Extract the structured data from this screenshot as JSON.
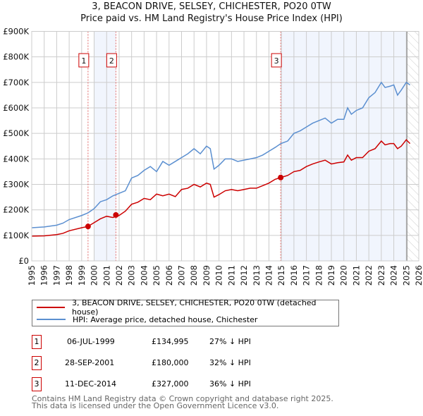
{
  "title": "3, BEACON DRIVE, SELSEY, CHICHESTER, PO20 0TW",
  "subtitle": "Price paid vs. HM Land Registry's House Price Index (HPI)",
  "chart_data": {
    "type": "line",
    "title": "3, BEACON DRIVE, SELSEY, CHICHESTER, PO20 0TW",
    "subtitle": "Price paid vs. HM Land Registry's House Price Index (HPI)",
    "xlim": [
      1995,
      2026
    ],
    "ylim": [
      0,
      900000
    ],
    "x_ticks": [
      "1995",
      "1996",
      "1997",
      "1998",
      "1999",
      "2000",
      "2001",
      "2002",
      "2003",
      "2004",
      "2005",
      "2006",
      "2007",
      "2008",
      "2009",
      "2010",
      "2011",
      "2012",
      "2013",
      "2014",
      "2015",
      "2016",
      "2017",
      "2018",
      "2019",
      "2020",
      "2021",
      "2022",
      "2023",
      "2024",
      "2025",
      "2026"
    ],
    "y_ticks": [
      {
        "v": 0,
        "label": "£0"
      },
      {
        "v": 100000,
        "label": "£100K"
      },
      {
        "v": 200000,
        "label": "£200K"
      },
      {
        "v": 300000,
        "label": "£300K"
      },
      {
        "v": 400000,
        "label": "£400K"
      },
      {
        "v": 500000,
        "label": "£500K"
      },
      {
        "v": 600000,
        "label": "£600K"
      },
      {
        "v": 700000,
        "label": "£700K"
      },
      {
        "v": 800000,
        "label": "£800K"
      },
      {
        "v": 900000,
        "label": "£900K"
      }
    ],
    "grid": true,
    "x": [
      1995,
      1996,
      1997,
      1997.5,
      1998,
      1999,
      1999.5,
      2000,
      2000.5,
      2001,
      2001.5,
      2002,
      2002.5,
      2003,
      2003.5,
      2004,
      2004.5,
      2005,
      2005.5,
      2006,
      2006.5,
      2007,
      2007.5,
      2008,
      2008.5,
      2009,
      2009.3,
      2009.6,
      2010,
      2010.5,
      2011,
      2011.5,
      2012,
      2012.5,
      2013,
      2013.5,
      2014,
      2014.5,
      2014.95,
      2015.5,
      2016,
      2016.5,
      2017,
      2017.5,
      2018,
      2018.5,
      2019,
      2019.5,
      2020,
      2020.3,
      2020.6,
      2021,
      2021.5,
      2022,
      2022.5,
      2023,
      2023.3,
      2023.7,
      2024,
      2024.3,
      2024.6,
      2025,
      2025.3
    ],
    "series": [
      {
        "name": "3, BEACON DRIVE, SELSEY, CHICHESTER, PO20 0TW (detached house)",
        "color": "#cc0000",
        "values": [
          97000,
          98000,
          103000,
          108000,
          118000,
          130000,
          135000,
          150000,
          165000,
          175000,
          170000,
          178000,
          195000,
          222000,
          230000,
          245000,
          240000,
          262000,
          255000,
          262000,
          252000,
          280000,
          285000,
          300000,
          290000,
          305000,
          300000,
          250000,
          260000,
          275000,
          280000,
          275000,
          280000,
          285000,
          285000,
          295000,
          305000,
          320000,
          327000,
          335000,
          350000,
          355000,
          370000,
          380000,
          388000,
          395000,
          380000,
          385000,
          388000,
          415000,
          395000,
          405000,
          405000,
          430000,
          440000,
          470000,
          455000,
          460000,
          460000,
          440000,
          450000,
          475000,
          460000
        ]
      },
      {
        "name": "HPI: Average price, detached house, Chichester",
        "color": "#5b8fd0",
        "values": [
          130000,
          133000,
          140000,
          148000,
          162000,
          178000,
          188000,
          205000,
          232000,
          240000,
          255000,
          265000,
          275000,
          325000,
          335000,
          355000,
          370000,
          350000,
          390000,
          375000,
          390000,
          405000,
          420000,
          440000,
          420000,
          450000,
          440000,
          360000,
          375000,
          400000,
          400000,
          390000,
          395000,
          400000,
          405000,
          415000,
          430000,
          445000,
          460000,
          470000,
          500000,
          510000,
          525000,
          540000,
          550000,
          560000,
          540000,
          555000,
          555000,
          600000,
          575000,
          590000,
          600000,
          640000,
          660000,
          700000,
          680000,
          685000,
          690000,
          650000,
          670000,
          700000,
          690000
        ]
      }
    ],
    "sales": [
      {
        "label": "1",
        "year": 1999.51,
        "price": 134995,
        "date": "06-JUL-1999",
        "price_text": "£134,995",
        "hpi_text": "27% ↓ HPI"
      },
      {
        "label": "2",
        "year": 2001.74,
        "price": 180000,
        "date": "28-SEP-2001",
        "price_text": "£180,000",
        "hpi_text": "32% ↓ HPI"
      },
      {
        "label": "3",
        "year": 2014.94,
        "price": 327000,
        "date": "11-DEC-2014",
        "price_text": "£327,000",
        "hpi_text": "36% ↓ HPI"
      }
    ],
    "shaded_ranges": [
      [
        2000,
        2001.74
      ],
      [
        2014.94,
        2025.05
      ]
    ],
    "forecast_start": 2025.05,
    "legend_position": "bottom"
  },
  "footer": [
    "Contains HM Land Registry data © Crown copyright and database right 2025.",
    "This data is licensed under the Open Government Licence v3.0."
  ]
}
